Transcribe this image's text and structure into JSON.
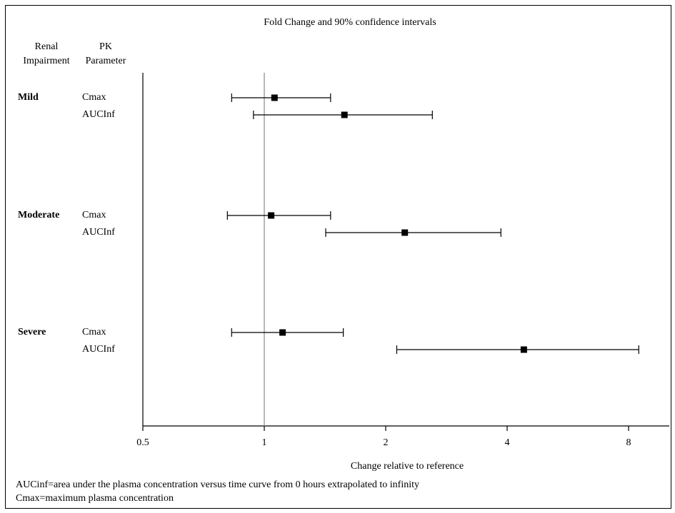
{
  "chart_data": {
    "type": "forest",
    "title": "Fold Change and 90% confidence intervals",
    "col_headers": {
      "group": [
        "Renal",
        "Impairment"
      ],
      "param": [
        "PK",
        "Parameter"
      ]
    },
    "xlabel": "Change relative to reference",
    "x_scale": "log2",
    "xlim": [
      0.5,
      9.6
    ],
    "x_ticks": [
      0.5,
      1,
      2,
      4,
      8
    ],
    "x_tick_labels": [
      "0.5",
      "1",
      "2",
      "4",
      "8"
    ],
    "reference_line": 1,
    "groups": [
      {
        "name": "Mild",
        "rows": [
          {
            "param": "Cmax",
            "estimate": 1.06,
            "lower": 0.83,
            "upper": 1.46
          },
          {
            "param": "AUCInf",
            "estimate": 1.58,
            "lower": 0.94,
            "upper": 2.61
          }
        ]
      },
      {
        "name": "Moderate",
        "rows": [
          {
            "param": "Cmax",
            "estimate": 1.04,
            "lower": 0.81,
            "upper": 1.46
          },
          {
            "param": "AUCInf",
            "estimate": 2.23,
            "lower": 1.42,
            "upper": 3.86
          }
        ]
      },
      {
        "name": "Severe",
        "rows": [
          {
            "param": "Cmax",
            "estimate": 1.11,
            "lower": 0.83,
            "upper": 1.57
          },
          {
            "param": "AUCInf",
            "estimate": 4.4,
            "lower": 2.13,
            "upper": 8.48
          }
        ]
      }
    ]
  },
  "footnotes": [
    "AUCinf=area under the plasma concentration versus time curve from 0 hours extrapolated to infinity",
    "Cmax=maximum plasma concentration"
  ]
}
